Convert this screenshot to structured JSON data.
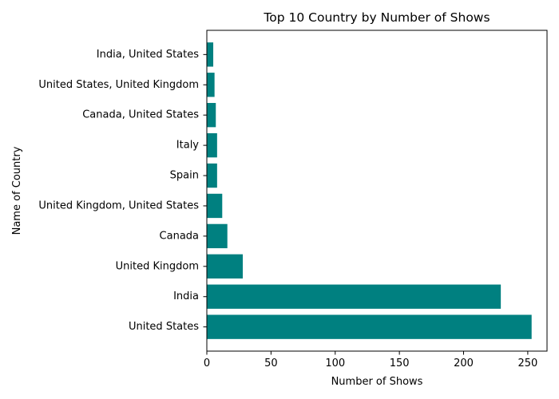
{
  "chart_data": {
    "type": "bar",
    "orientation": "horizontal",
    "title": "Top 10 Country by Number of Shows",
    "xlabel": "Number of Shows",
    "ylabel": "Name of Country",
    "categories": [
      "United States",
      "India",
      "United Kingdom",
      "Canada",
      "United Kingdom, United States",
      "Spain",
      "Italy",
      "Canada, United States",
      "United States, United Kingdom",
      "India, United States"
    ],
    "values": [
      253,
      229,
      28,
      16,
      12,
      8,
      8,
      7,
      6,
      5
    ],
    "xlim": [
      0,
      265
    ],
    "xticks": [
      0,
      50,
      100,
      150,
      200,
      250
    ],
    "xtick_labels": [
      "0",
      "50",
      "100",
      "150",
      "200",
      "250"
    ],
    "bar_color": "#008080",
    "grid": false,
    "legend": "none"
  }
}
